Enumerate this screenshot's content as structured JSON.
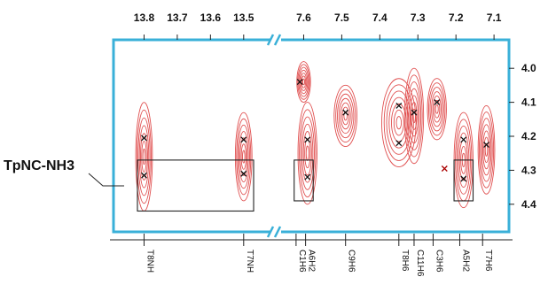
{
  "chart_data": {
    "type": "scatter",
    "x_axis_left_ticks": [
      "13.8",
      "13.7",
      "13.6",
      "13.5"
    ],
    "x_axis_right_ticks": [
      "7.6",
      "7.5",
      "7.4",
      "7.3",
      "7.2",
      "7.1"
    ],
    "y_ticks": [
      "4.0",
      "4.1",
      "4.2",
      "4.3",
      "4.4"
    ],
    "x_left_range": [
      13.86,
      13.43
    ],
    "x_right_range": [
      7.65,
      7.07
    ],
    "y_range": [
      3.95,
      4.45
    ],
    "axis_break": true,
    "group_label": "TpNC-NH3",
    "contour_color": "#e05050",
    "frame_color": "#3ab0d8",
    "peaks": [
      {
        "panel": "left",
        "x": 13.8,
        "y": 4.205
      },
      {
        "panel": "left",
        "x": 13.8,
        "y": 4.315
      },
      {
        "panel": "left",
        "x": 13.5,
        "y": 4.21
      },
      {
        "panel": "left",
        "x": 13.5,
        "y": 4.31
      },
      {
        "panel": "right",
        "x": 7.61,
        "y": 4.04
      },
      {
        "panel": "right",
        "x": 7.59,
        "y": 4.21
      },
      {
        "panel": "right",
        "x": 7.59,
        "y": 4.32
      },
      {
        "panel": "right",
        "x": 7.49,
        "y": 4.13
      },
      {
        "panel": "right",
        "x": 7.35,
        "y": 4.11
      },
      {
        "panel": "right",
        "x": 7.35,
        "y": 4.22
      },
      {
        "panel": "right",
        "x": 7.31,
        "y": 4.13
      },
      {
        "panel": "right",
        "x": 7.25,
        "y": 4.1
      },
      {
        "panel": "right",
        "x": 7.18,
        "y": 4.21
      },
      {
        "panel": "right",
        "x": 7.18,
        "y": 4.325
      },
      {
        "panel": "right",
        "x": 7.12,
        "y": 4.225
      },
      {
        "panel": "right",
        "x": 7.23,
        "y": 4.295
      }
    ],
    "contours": [
      {
        "panel": "left",
        "x": 13.8,
        "y": 4.26,
        "rx": 0.025,
        "ry": 0.16
      },
      {
        "panel": "left",
        "x": 13.5,
        "y": 4.26,
        "rx": 0.025,
        "ry": 0.13
      },
      {
        "panel": "right",
        "x": 7.6,
        "y": 4.04,
        "rx": 0.018,
        "ry": 0.06
      },
      {
        "panel": "right",
        "x": 7.59,
        "y": 4.25,
        "rx": 0.025,
        "ry": 0.15
      },
      {
        "panel": "right",
        "x": 7.49,
        "y": 4.14,
        "rx": 0.03,
        "ry": 0.09
      },
      {
        "panel": "right",
        "x": 7.35,
        "y": 4.16,
        "rx": 0.045,
        "ry": 0.13
      },
      {
        "panel": "right",
        "x": 7.31,
        "y": 4.14,
        "rx": 0.025,
        "ry": 0.14
      },
      {
        "panel": "right",
        "x": 7.25,
        "y": 4.12,
        "rx": 0.025,
        "ry": 0.09
      },
      {
        "panel": "right",
        "x": 7.18,
        "y": 4.27,
        "rx": 0.025,
        "ry": 0.14
      },
      {
        "panel": "right",
        "x": 7.12,
        "y": 4.24,
        "rx": 0.022,
        "ry": 0.13
      }
    ],
    "boxes": [
      {
        "panel": "left",
        "x1": 13.82,
        "x2": 13.47,
        "y1": 4.27,
        "y2": 4.42
      },
      {
        "panel": "right",
        "x1": 7.625,
        "x2": 7.575,
        "y1": 4.27,
        "y2": 4.39
      },
      {
        "panel": "right",
        "x1": 7.205,
        "x2": 7.155,
        "y1": 4.27,
        "y2": 4.39
      }
    ],
    "assignments": [
      {
        "panel": "left",
        "x": 13.8,
        "label": "T8NH"
      },
      {
        "panel": "left",
        "x": 13.5,
        "label": "T7NH"
      },
      {
        "panel": "right",
        "x": 7.62,
        "label": "C1H6"
      },
      {
        "panel": "right",
        "x": 7.595,
        "label": "A6H2"
      },
      {
        "panel": "right",
        "x": 7.49,
        "label": "C9H6"
      },
      {
        "panel": "right",
        "x": 7.35,
        "label": "T8H6"
      },
      {
        "panel": "right",
        "x": 7.31,
        "label": "C11H6"
      },
      {
        "panel": "right",
        "x": 7.26,
        "label": "C3H6"
      },
      {
        "panel": "right",
        "x": 7.19,
        "label": "A5H2"
      },
      {
        "panel": "right",
        "x": 7.13,
        "label": "T7H6"
      }
    ]
  }
}
